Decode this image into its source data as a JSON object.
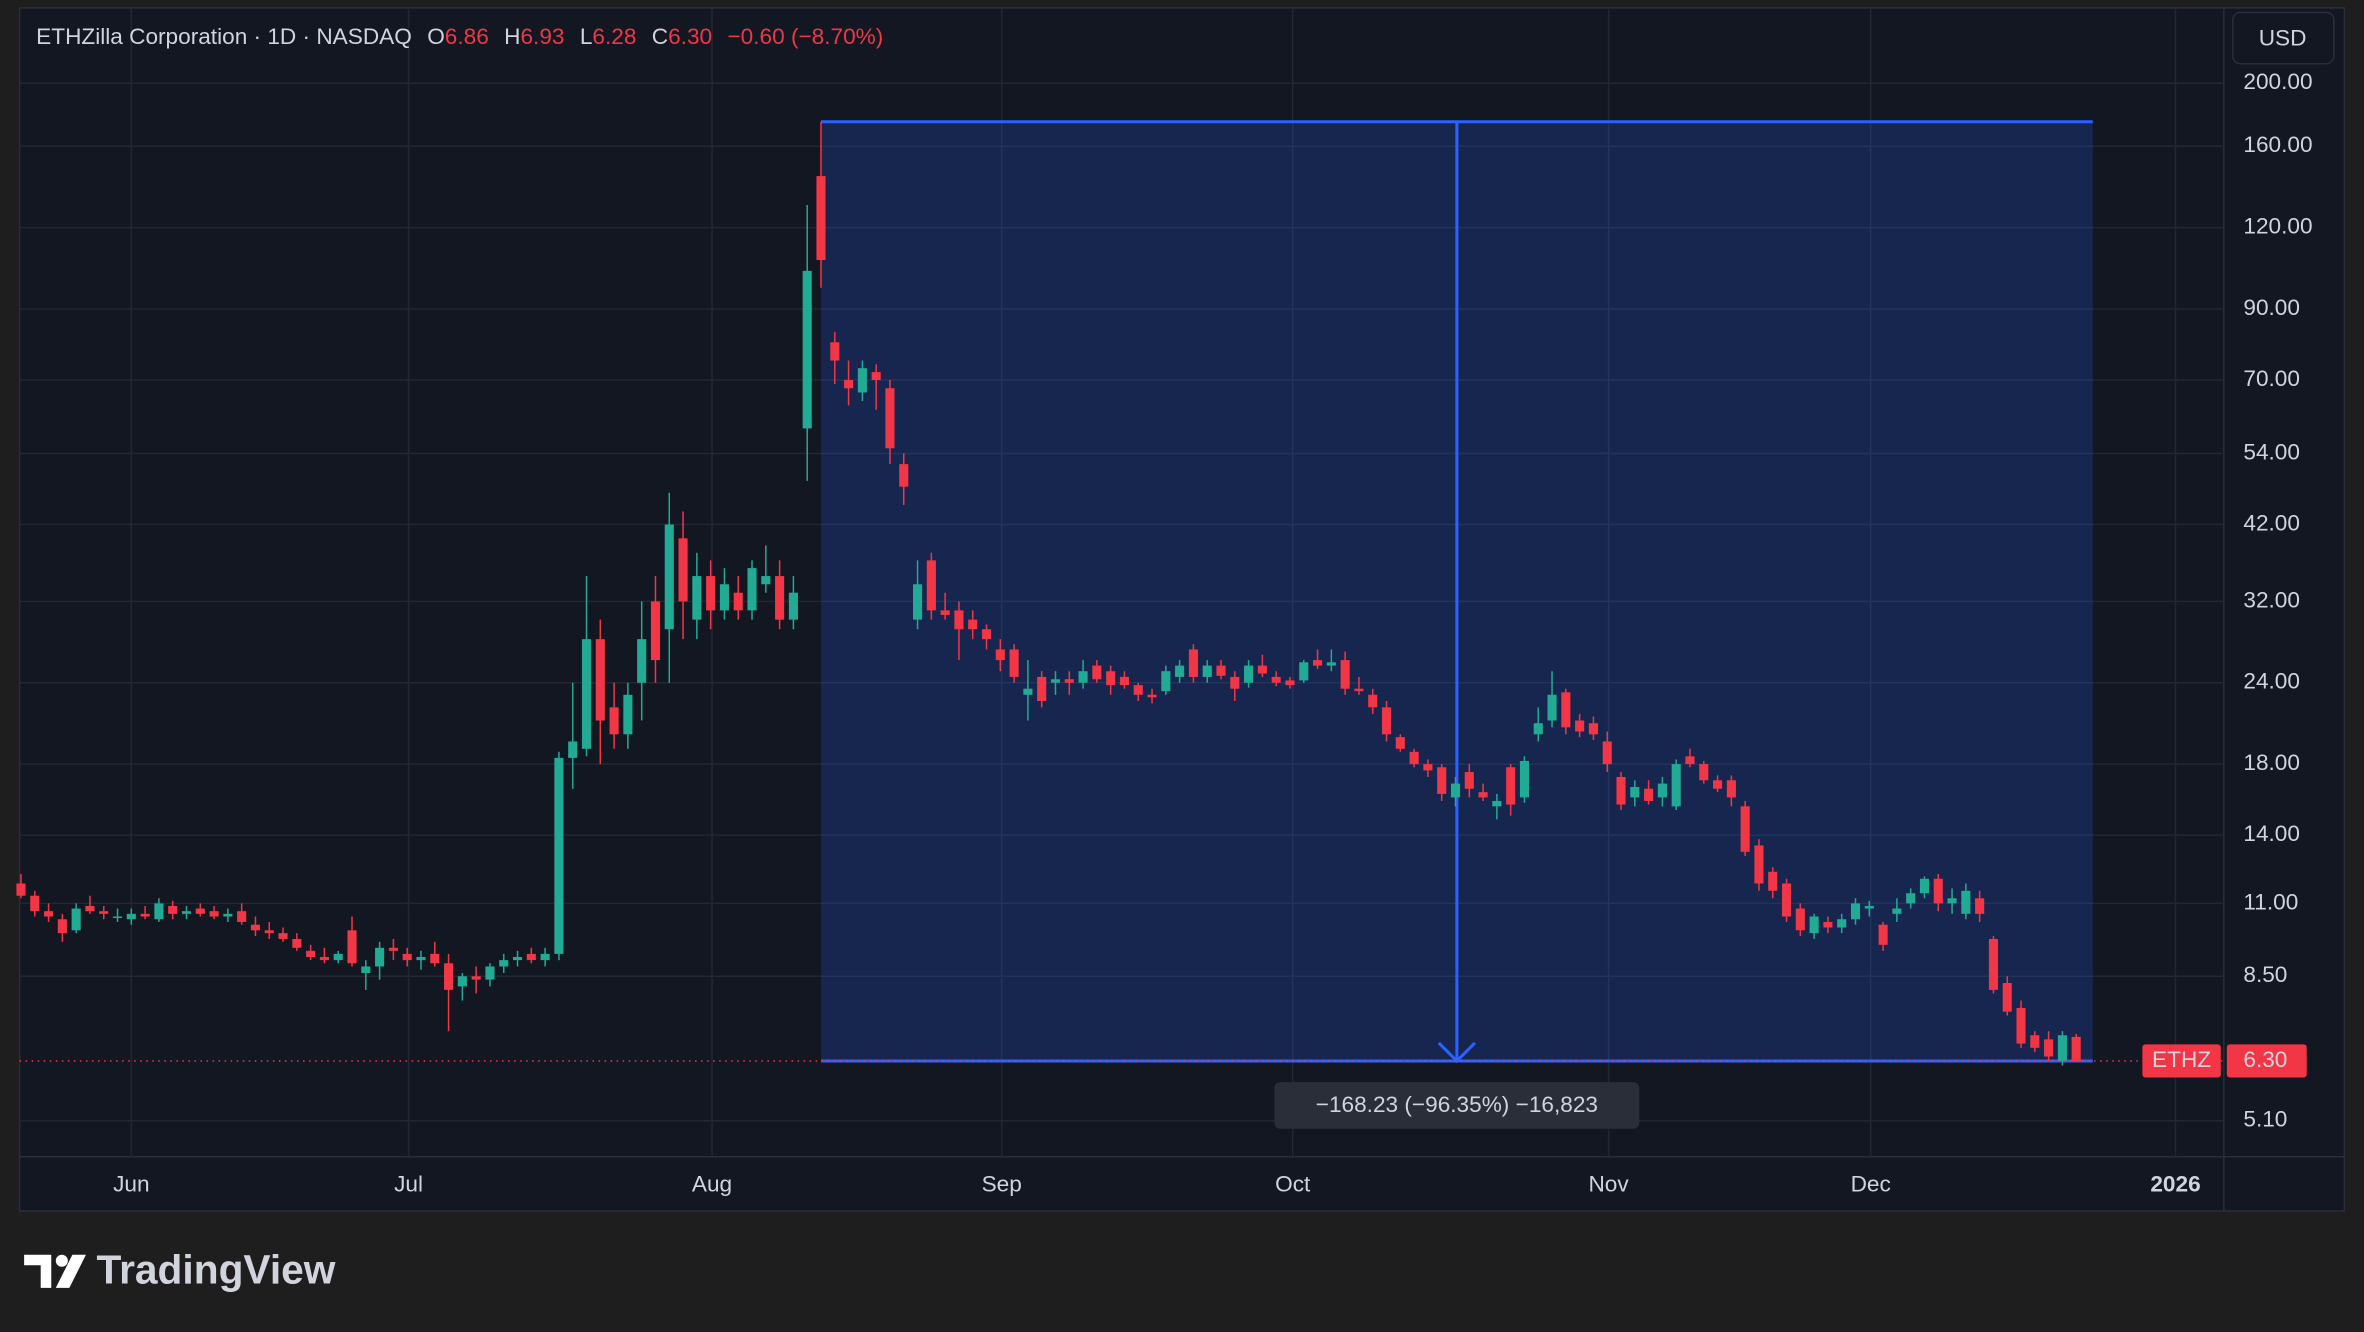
{
  "chart_data": {
    "type": "candlestick",
    "title": "ETHZilla Corporation · 1D · NASDAQ",
    "ohlc_labels": [
      "O",
      "H",
      "L",
      "C"
    ],
    "ohlc_values": [
      "6.86",
      "6.93",
      "6.28",
      "6.30"
    ],
    "change": "−0.60 (−8.70%)",
    "currency": "USD",
    "symbol": "ETHZ",
    "last_price": {
      "value": 6.3,
      "label": "6.30"
    },
    "up_color": "#22ab94",
    "down_color": "#f23645",
    "log_scale": true,
    "grid": true,
    "ylim": [
      4.49,
      261
    ],
    "yticks": [
      {
        "value": 200,
        "label": "200.00"
      },
      {
        "value": 160,
        "label": "160.00"
      },
      {
        "value": 120,
        "label": "120.00"
      },
      {
        "value": 90,
        "label": "90.00"
      },
      {
        "value": 70,
        "label": "70.00"
      },
      {
        "value": 54,
        "label": "54.00"
      },
      {
        "value": 42,
        "label": "42.00"
      },
      {
        "value": 32,
        "label": "32.00"
      },
      {
        "value": 24,
        "label": "24.00"
      },
      {
        "value": 18,
        "label": "18.00"
      },
      {
        "value": 14,
        "label": "14.00"
      },
      {
        "value": 11,
        "label": "11.00"
      },
      {
        "value": 8.5,
        "label": "8.50"
      },
      {
        "value": 5.1,
        "label": "5.10"
      }
    ],
    "xlim": [
      -0.1,
      159.7
    ],
    "xticks": [
      {
        "value": 8,
        "label": "Jun"
      },
      {
        "value": 28.1,
        "label": "Jul"
      },
      {
        "value": 50.1,
        "label": "Aug"
      },
      {
        "value": 71.1,
        "label": "Sep"
      },
      {
        "value": 92.2,
        "label": "Oct"
      },
      {
        "value": 115.1,
        "label": "Nov"
      },
      {
        "value": 134.1,
        "label": "Dec"
      },
      {
        "value": 156.2,
        "label": "2026"
      }
    ],
    "measure": {
      "start": 58,
      "end": 150.2,
      "high": 174.53,
      "low": 6.3,
      "label": "−168.23 (−96.35%) −16,823"
    },
    "candles": [
      [
        11.8,
        12.2,
        11.2,
        11.3
      ],
      [
        11.3,
        11.5,
        10.5,
        10.7
      ],
      [
        10.7,
        11.0,
        10.3,
        10.5
      ],
      [
        10.4,
        10.6,
        9.6,
        9.9
      ],
      [
        10.0,
        11.0,
        9.9,
        10.8
      ],
      [
        10.9,
        11.3,
        10.6,
        10.7
      ],
      [
        10.7,
        10.9,
        10.4,
        10.6
      ],
      [
        10.5,
        10.8,
        10.3,
        10.5
      ],
      [
        10.4,
        10.8,
        10.2,
        10.6
      ],
      [
        10.6,
        10.9,
        10.4,
        10.5
      ],
      [
        10.4,
        11.2,
        10.3,
        11.0
      ],
      [
        10.9,
        11.1,
        10.4,
        10.6
      ],
      [
        10.6,
        10.9,
        10.4,
        10.7
      ],
      [
        10.8,
        11.0,
        10.5,
        10.6
      ],
      [
        10.7,
        10.9,
        10.4,
        10.5
      ],
      [
        10.5,
        10.8,
        10.3,
        10.6
      ],
      [
        10.7,
        11.0,
        10.2,
        10.3
      ],
      [
        10.2,
        10.5,
        9.8,
        10.0
      ],
      [
        10.0,
        10.3,
        9.7,
        9.9
      ],
      [
        9.9,
        10.1,
        9.6,
        9.7
      ],
      [
        9.7,
        9.9,
        9.3,
        9.4
      ],
      [
        9.3,
        9.5,
        9.0,
        9.1
      ],
      [
        9.1,
        9.4,
        8.9,
        9.0
      ],
      [
        9.0,
        9.3,
        8.9,
        9.2
      ],
      [
        10.0,
        10.5,
        8.8,
        8.9
      ],
      [
        8.6,
        9.0,
        8.1,
        8.8
      ],
      [
        8.8,
        9.6,
        8.4,
        9.4
      ],
      [
        9.4,
        9.7,
        9.0,
        9.3
      ],
      [
        9.2,
        9.4,
        8.8,
        9.0
      ],
      [
        9.0,
        9.3,
        8.7,
        9.1
      ],
      [
        9.2,
        9.6,
        8.8,
        8.9
      ],
      [
        8.9,
        9.2,
        7.0,
        8.1
      ],
      [
        8.2,
        8.6,
        7.8,
        8.5
      ],
      [
        8.5,
        8.8,
        8.0,
        8.4
      ],
      [
        8.4,
        8.9,
        8.2,
        8.8
      ],
      [
        8.8,
        9.2,
        8.6,
        9.0
      ],
      [
        9.0,
        9.3,
        8.8,
        9.1
      ],
      [
        9.2,
        9.4,
        8.9,
        9.0
      ],
      [
        9.0,
        9.4,
        8.8,
        9.2
      ],
      [
        9.2,
        18.8,
        9.0,
        18.4
      ],
      [
        18.4,
        24.0,
        16.5,
        19.5
      ],
      [
        19.0,
        35.0,
        18.5,
        28.0
      ],
      [
        28.0,
        30.0,
        18.0,
        21.0
      ],
      [
        22.0,
        24.0,
        19.0,
        20.0
      ],
      [
        20.0,
        24.0,
        19.0,
        23.0
      ],
      [
        24.0,
        32.0,
        21.0,
        28.0
      ],
      [
        32.0,
        35.0,
        24.0,
        26.0
      ],
      [
        29.0,
        47.0,
        24.0,
        42.0
      ],
      [
        40.0,
        44.0,
        28.0,
        32.0
      ],
      [
        30.0,
        38.0,
        28.0,
        35.0
      ],
      [
        35.0,
        37.0,
        29.0,
        31.0
      ],
      [
        31.0,
        36.0,
        30.0,
        34.0
      ],
      [
        33.0,
        35.0,
        30.0,
        31.0
      ],
      [
        31.0,
        37.0,
        30.0,
        36.0
      ],
      [
        34.0,
        39.0,
        33.0,
        35.0
      ],
      [
        35.0,
        37.0,
        29.0,
        30.0
      ],
      [
        30.0,
        35.0,
        29.0,
        33.0
      ],
      [
        59,
        130,
        49,
        103
      ],
      [
        144,
        174.53,
        97,
        107
      ],
      [
        80,
        83,
        69,
        75
      ],
      [
        70,
        75,
        64,
        68
      ],
      [
        67,
        75,
        65,
        73
      ],
      [
        72,
        74,
        63,
        70
      ],
      [
        68,
        70,
        52,
        55
      ],
      [
        52,
        54,
        45,
        48
      ],
      [
        30,
        37,
        29,
        34
      ],
      [
        37,
        38,
        30,
        31
      ],
      [
        31,
        33,
        30,
        30.5
      ],
      [
        31,
        32,
        26,
        29
      ],
      [
        30,
        31,
        28,
        29
      ],
      [
        29,
        29.5,
        27,
        28
      ],
      [
        27,
        28,
        25,
        26
      ],
      [
        27,
        27.5,
        24,
        24.5
      ],
      [
        23,
        26,
        21,
        23.5
      ],
      [
        24.5,
        25,
        22,
        22.5
      ],
      [
        24,
        25,
        23,
        24.3
      ],
      [
        24.3,
        25,
        23,
        24
      ],
      [
        24,
        26,
        23.5,
        25
      ],
      [
        25.5,
        26,
        24,
        24.3
      ],
      [
        25,
        25.5,
        23,
        23.8
      ],
      [
        24.5,
        25,
        23.5,
        23.8
      ],
      [
        23.8,
        24,
        22.5,
        23
      ],
      [
        23,
        23.5,
        22.3,
        22.8
      ],
      [
        23.3,
        25.5,
        23,
        25
      ],
      [
        24.5,
        26,
        24,
        25.5
      ],
      [
        27,
        27.5,
        24,
        24.5
      ],
      [
        24.5,
        26,
        24,
        25.5
      ],
      [
        25.5,
        26,
        24.3,
        24.6
      ],
      [
        24.5,
        25,
        22.5,
        23.5
      ],
      [
        24,
        26,
        23.6,
        25.5
      ],
      [
        25.5,
        26.5,
        24.5,
        24.8
      ],
      [
        24.5,
        25,
        23.7,
        24
      ],
      [
        24.2,
        24.5,
        23.5,
        23.8
      ],
      [
        24.2,
        26,
        24,
        25.8
      ],
      [
        26,
        27,
        25.2,
        25.5
      ],
      [
        25.5,
        27,
        25,
        25.8
      ],
      [
        26,
        26.8,
        23,
        23.5
      ],
      [
        23.5,
        24.5,
        23,
        23.3
      ],
      [
        23,
        23.5,
        21.5,
        22
      ],
      [
        22,
        22.5,
        19.5,
        20
      ],
      [
        19.8,
        20,
        18.8,
        19
      ],
      [
        18.8,
        19,
        17.8,
        18
      ],
      [
        18,
        18.3,
        17.2,
        17.6
      ],
      [
        17.8,
        18,
        15.8,
        16.2
      ],
      [
        16,
        17.2,
        15.5,
        16.8
      ],
      [
        17.5,
        18,
        16,
        16.5
      ],
      [
        16.3,
        16.8,
        15.8,
        16
      ],
      [
        15.5,
        16.2,
        14.8,
        15.8
      ],
      [
        17.8,
        18,
        15,
        15.6
      ],
      [
        16,
        18.5,
        15.7,
        18.2
      ],
      [
        20,
        22,
        19.5,
        20.8
      ],
      [
        21,
        25,
        20.5,
        23
      ],
      [
        23.2,
        23.5,
        20,
        20.5
      ],
      [
        21,
        21.5,
        19.8,
        20.2
      ],
      [
        20.8,
        21.3,
        19.6,
        20
      ],
      [
        19.5,
        20.2,
        17.5,
        18
      ],
      [
        17.2,
        17.5,
        15.3,
        15.6
      ],
      [
        16,
        17,
        15.5,
        16.6
      ],
      [
        16.5,
        17,
        15.6,
        15.8
      ],
      [
        16,
        17.2,
        15.5,
        16.8
      ],
      [
        15.5,
        18.3,
        15.3,
        18
      ],
      [
        18.5,
        19,
        17.8,
        18
      ],
      [
        18,
        18.2,
        16.8,
        17
      ],
      [
        17,
        17.3,
        16.3,
        16.5
      ],
      [
        17,
        17.3,
        15.5,
        16
      ],
      [
        15.5,
        15.8,
        13,
        13.2
      ],
      [
        13.5,
        13.8,
        11.5,
        11.8
      ],
      [
        12.3,
        12.5,
        11.2,
        11.5
      ],
      [
        11.8,
        12,
        10.3,
        10.5
      ],
      [
        10.8,
        11,
        9.8,
        10
      ],
      [
        9.9,
        10.6,
        9.7,
        10.5
      ],
      [
        10.3,
        10.5,
        9.9,
        10.1
      ],
      [
        10.1,
        10.6,
        9.9,
        10.4
      ],
      [
        10.4,
        11.2,
        10.2,
        11
      ],
      [
        10.8,
        11.1,
        10.5,
        10.9
      ],
      [
        10.2,
        10.3,
        9.3,
        9.5
      ],
      [
        10.6,
        11.2,
        10.3,
        10.8
      ],
      [
        11,
        11.6,
        10.8,
        11.4
      ],
      [
        11.4,
        12.1,
        11.2,
        12
      ],
      [
        12,
        12.2,
        10.7,
        11
      ],
      [
        11,
        11.6,
        10.6,
        11.2
      ],
      [
        10.6,
        11.8,
        10.4,
        11.5
      ],
      [
        11.2,
        11.5,
        10.3,
        10.6
      ],
      [
        9.7,
        9.8,
        8,
        8.1
      ],
      [
        8.3,
        8.5,
        7.4,
        7.5
      ],
      [
        7.6,
        7.8,
        6.6,
        6.7
      ],
      [
        6.9,
        7,
        6.5,
        6.6
      ],
      [
        6.8,
        7,
        6.3,
        6.4
      ],
      [
        6.3,
        7,
        6.2,
        6.9
      ],
      [
        6.86,
        6.93,
        6.28,
        6.3
      ]
    ]
  },
  "brand": "TradingView"
}
